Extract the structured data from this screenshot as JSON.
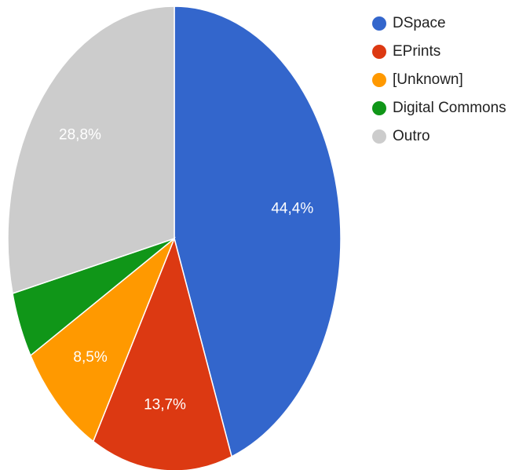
{
  "chart_data": {
    "type": "pie",
    "categories": [
      "DSpace",
      "EPrints",
      "[Unknown]",
      "Digital Commons",
      "Outro"
    ],
    "values": [
      44.4,
      13.7,
      8.5,
      4.6,
      28.8
    ],
    "value_labels": [
      "44,4%",
      "13,7%",
      "8,5%",
      null,
      "28,8%"
    ],
    "colors": [
      "#3366cc",
      "#dc3912",
      "#ff9900",
      "#109618",
      "#cccccc"
    ],
    "legend": "right"
  }
}
